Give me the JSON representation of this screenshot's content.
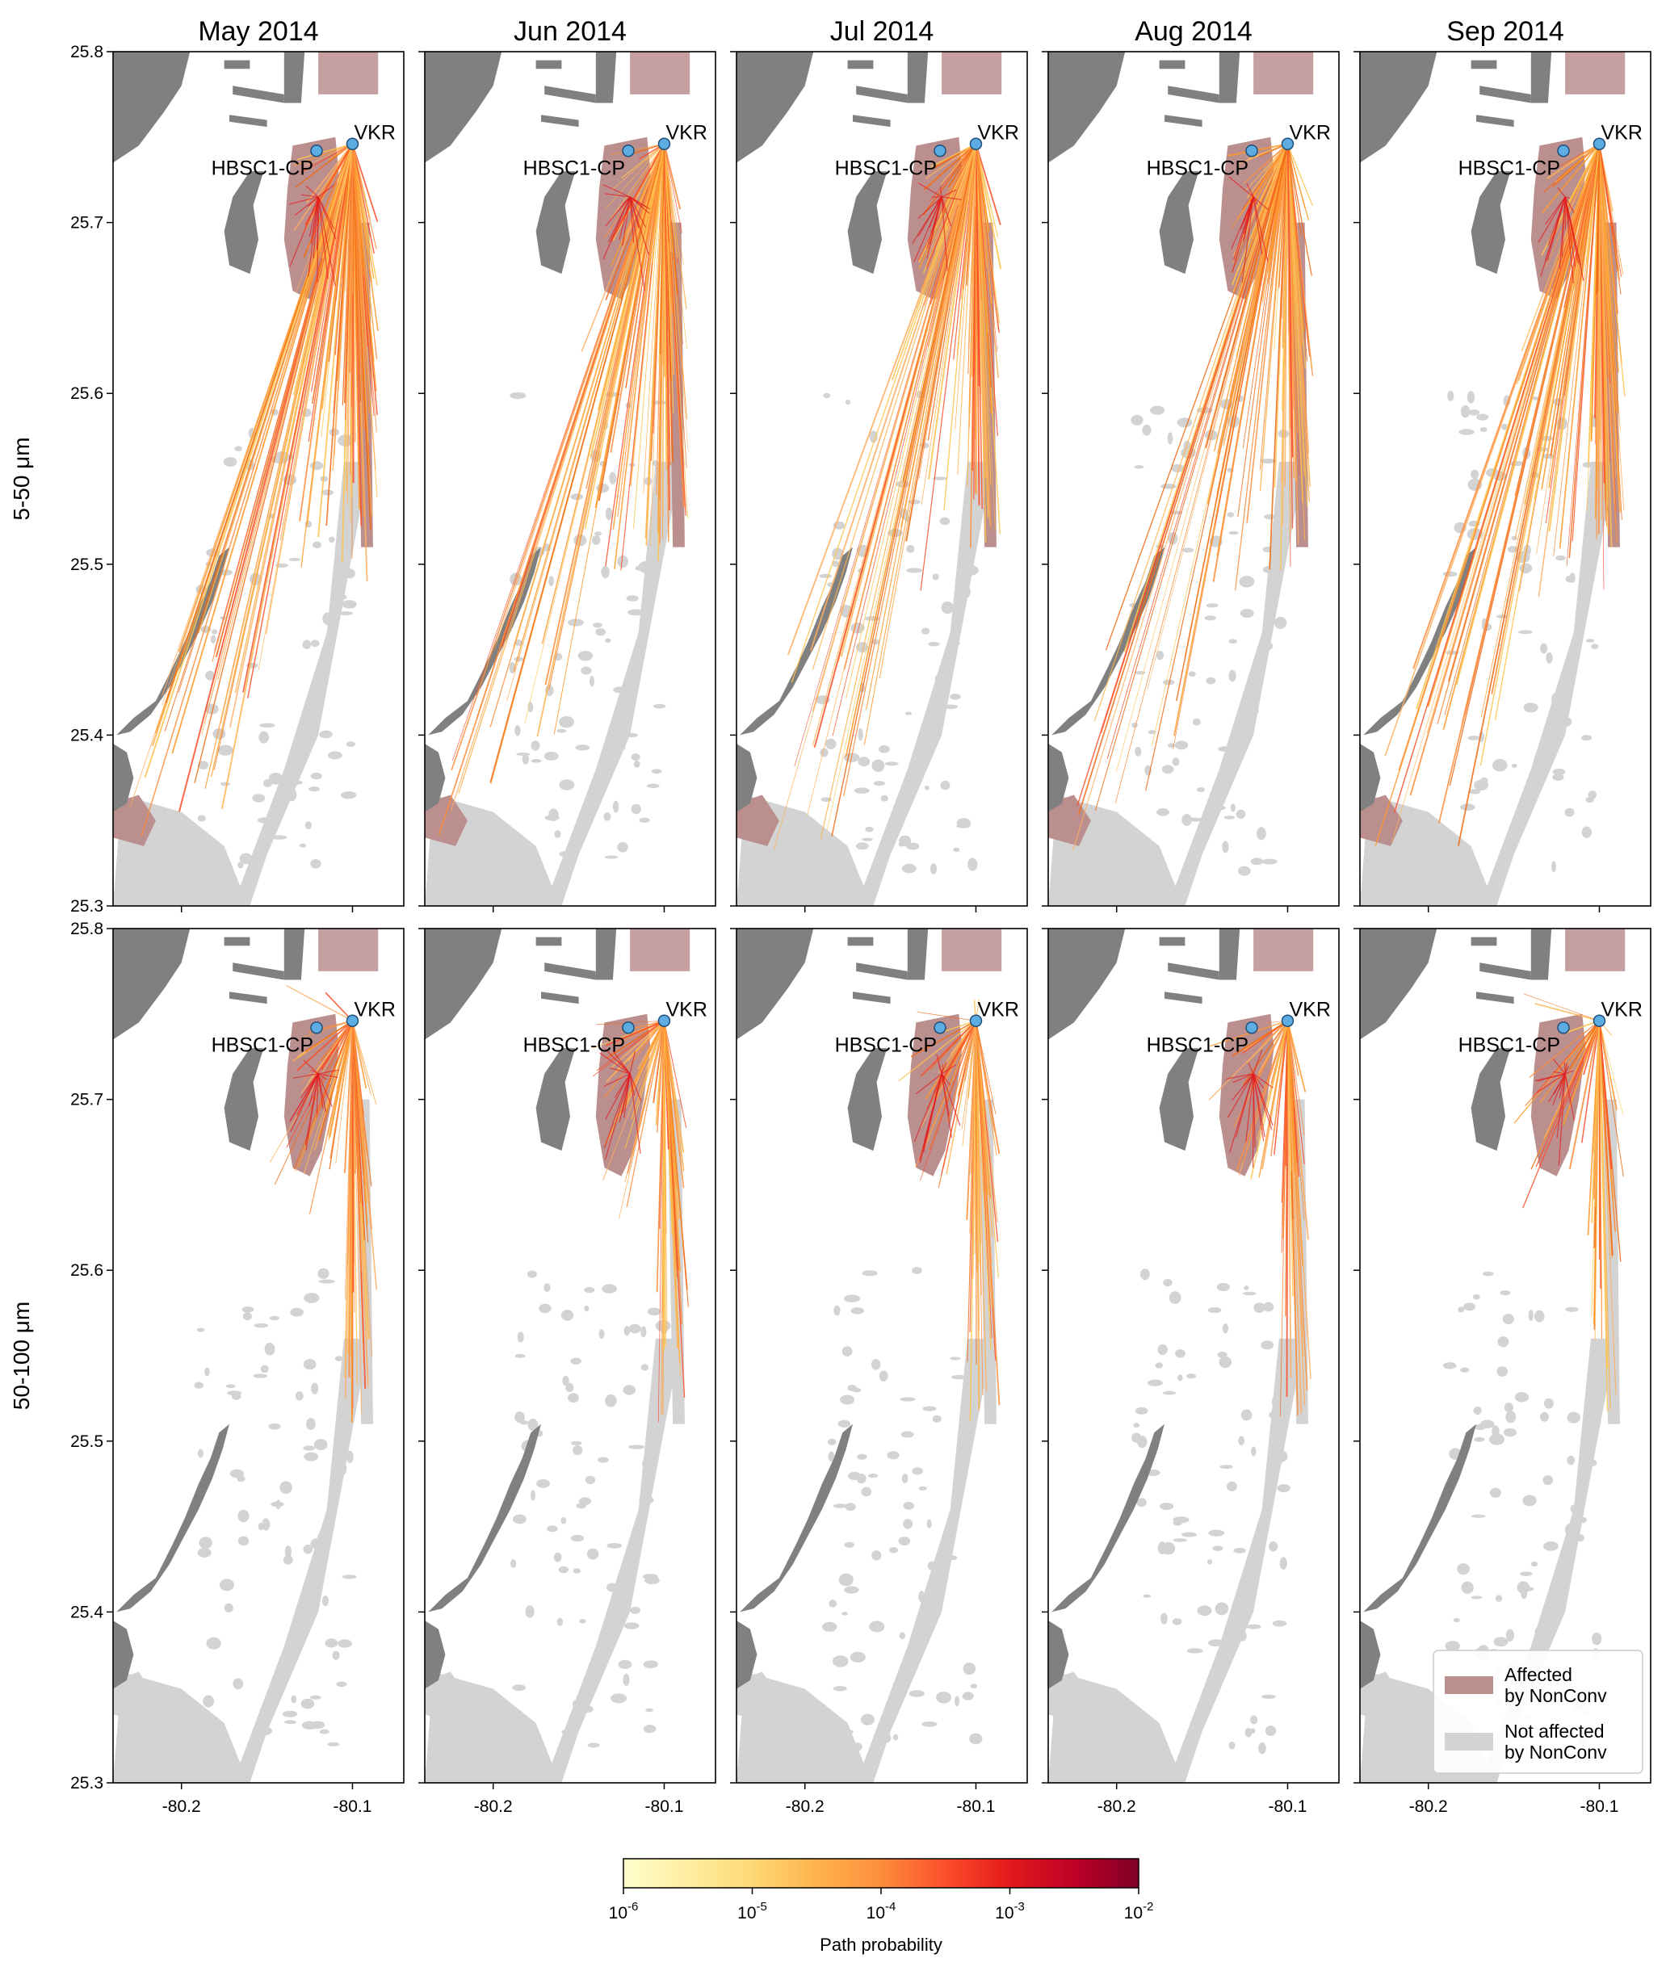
{
  "chart_data": {
    "type": "map_panels",
    "columns": [
      "May 2014",
      "Jun 2014",
      "Jul 2014",
      "Aug 2014",
      "Sep 2014"
    ],
    "rows": [
      "5-50 μm",
      "50-100 μm"
    ],
    "xlim": [
      -80.24,
      -80.07
    ],
    "ylim": [
      25.3,
      25.8
    ],
    "xticks": [
      -80.2,
      -80.1
    ],
    "xtick_labels": [
      "-80.2",
      "-80.1"
    ],
    "yticks": [
      25.3,
      25.4,
      25.5,
      25.6,
      25.7,
      25.8
    ],
    "ytick_labels": [
      "25.3",
      "25.4",
      "25.5",
      "25.6",
      "25.7",
      "25.8"
    ],
    "sites": [
      {
        "name": "VKR",
        "lon": -80.1,
        "lat": 25.746
      },
      {
        "name": "HBSC1-CP",
        "lon": -80.121,
        "lat": 25.742
      }
    ],
    "path_density": [
      [
        1.0,
        0.75,
        0.85,
        0.8,
        0.9
      ],
      [
        0.55,
        0.45,
        0.45,
        0.4,
        0.35
      ]
    ],
    "long_range_reach_lat": [
      [
        25.34,
        25.34,
        25.33,
        25.33,
        25.33
      ],
      [
        25.62,
        25.62,
        25.62,
        25.62,
        25.62
      ]
    ],
    "colorbar": {
      "label": "Path probability",
      "scale": "log",
      "ticks": [
        "10^-6",
        "10^-5",
        "10^-4",
        "10^-3",
        "10^-2"
      ],
      "tick_values": [
        1e-06,
        1e-05,
        0.0001,
        0.001,
        0.01
      ],
      "colors": [
        "#ffffcc",
        "#ffeda0",
        "#fed976",
        "#feb24c",
        "#fd8d3c",
        "#fc4e2a",
        "#e31a1c",
        "#bd0026",
        "#800026"
      ]
    },
    "legend": {
      "location": "lower right",
      "entries": [
        {
          "label_line1": "Affected",
          "label_line2": "by NonConv",
          "color": "#bc8f8f"
        },
        {
          "label_line1": "Not affected",
          "label_line2": "by NonConv",
          "color": "#d3d3d3"
        }
      ]
    },
    "colors": {
      "land": "#808080",
      "affected": "#bc8f8f",
      "not_affected": "#d3d3d3",
      "site_marker": "#5dade2"
    }
  }
}
